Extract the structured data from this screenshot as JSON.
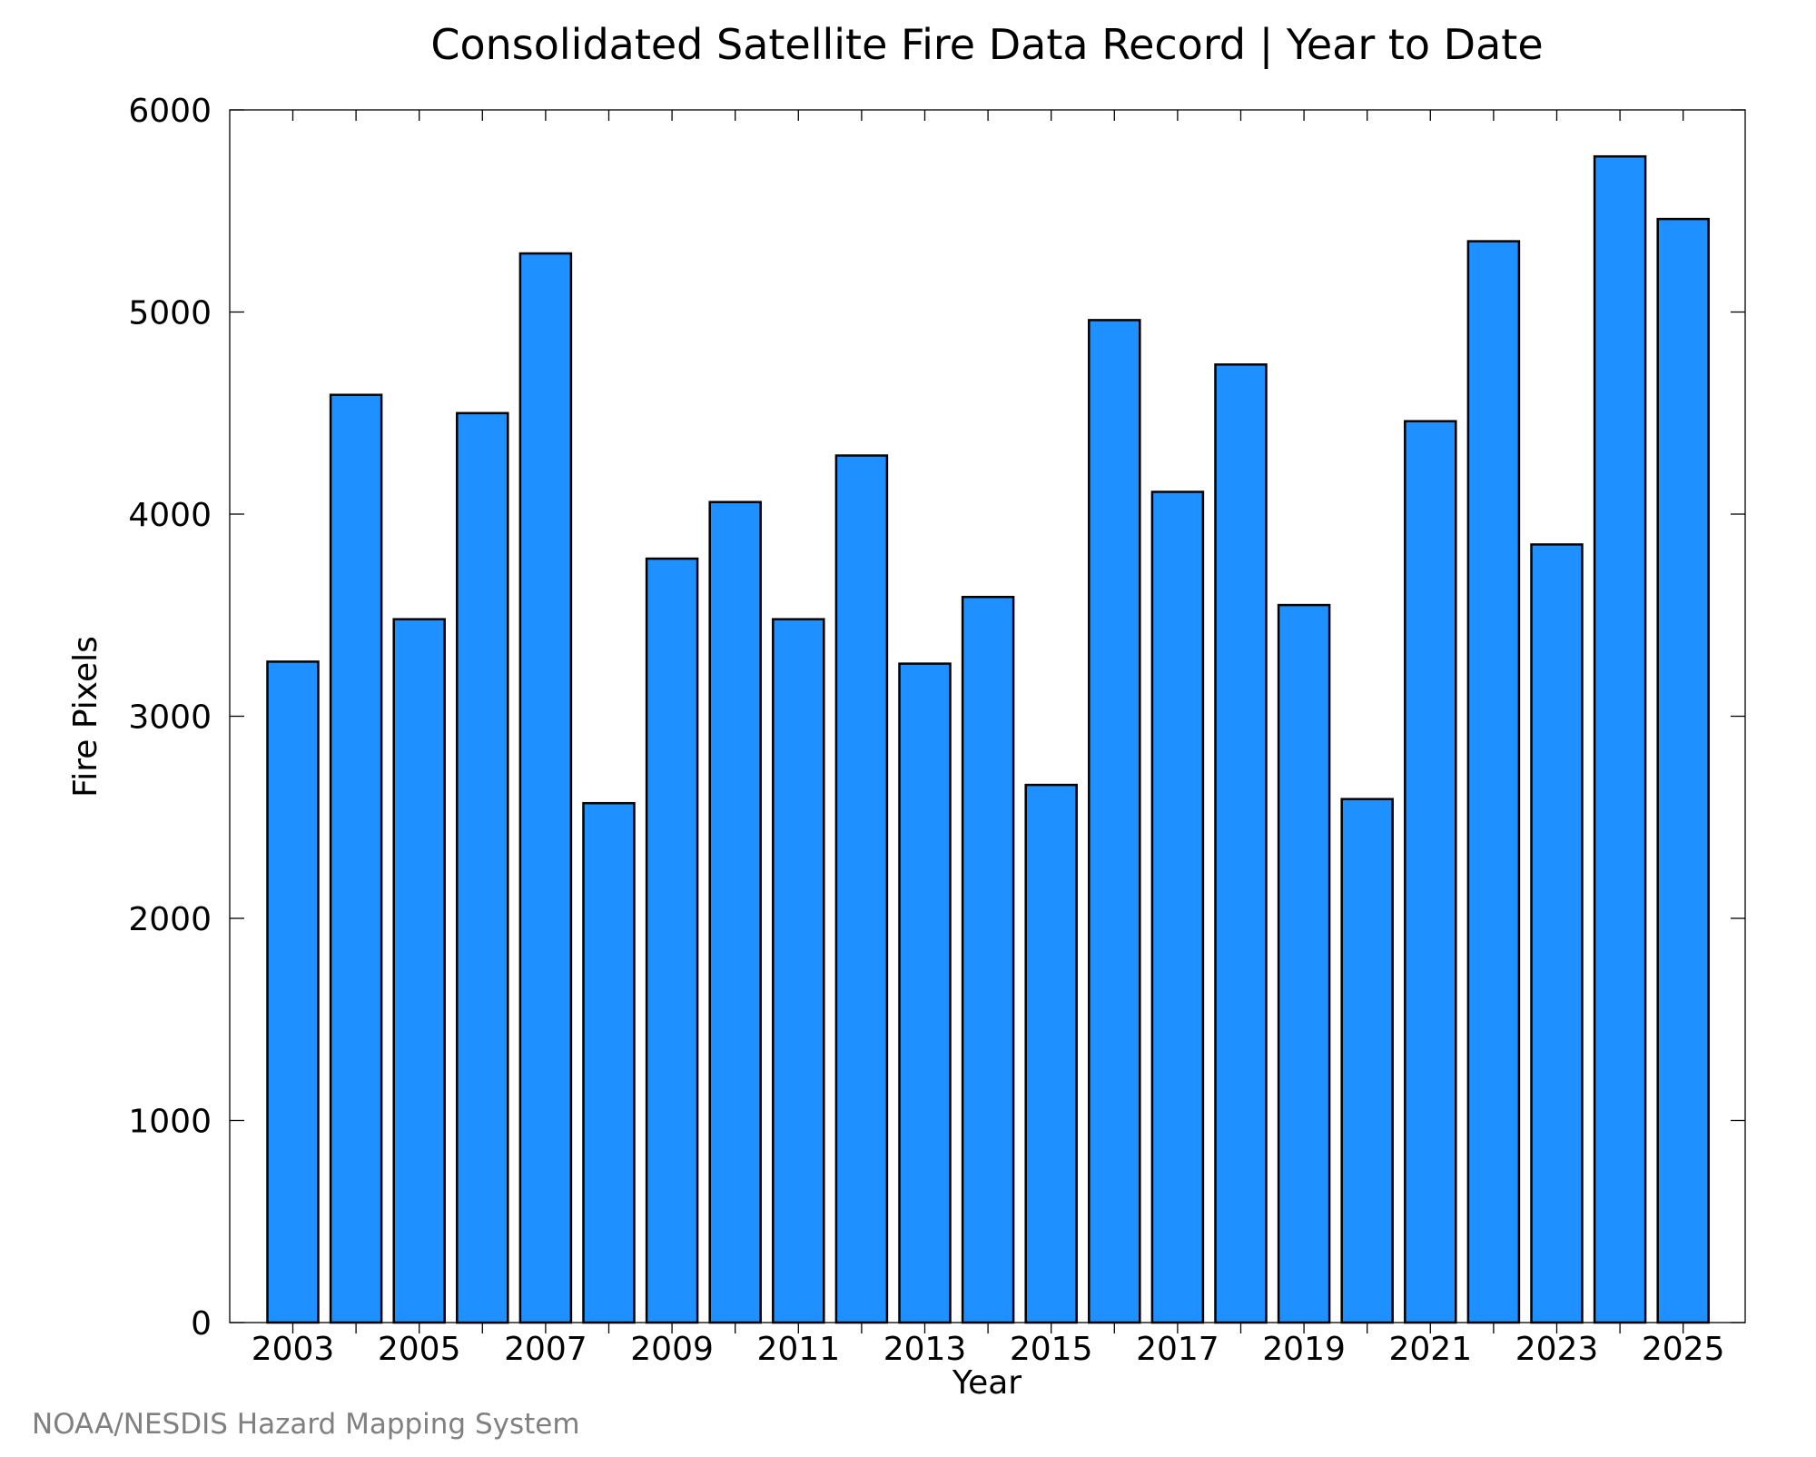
{
  "chart_data": {
    "type": "bar",
    "title": "Consolidated Satellite Fire Data Record | Year to Date",
    "xlabel": "Year",
    "ylabel": "Fire Pixels",
    "categories": [
      "2003",
      "2004",
      "2005",
      "2006",
      "2007",
      "2008",
      "2009",
      "2010",
      "2011",
      "2012",
      "2013",
      "2014",
      "2015",
      "2016",
      "2017",
      "2018",
      "2019",
      "2020",
      "2021",
      "2022",
      "2023",
      "2024",
      "2025"
    ],
    "x_tick_labels": [
      "2003",
      "2005",
      "2007",
      "2009",
      "2011",
      "2013",
      "2015",
      "2017",
      "2019",
      "2021",
      "2023",
      "2025"
    ],
    "values": [
      3270,
      4590,
      3480,
      4500,
      5290,
      2570,
      3780,
      4060,
      3480,
      4290,
      3260,
      3590,
      2660,
      4960,
      4110,
      4740,
      3550,
      2590,
      4460,
      5350,
      3850,
      5770,
      5460
    ],
    "ylim": [
      0,
      6000
    ],
    "y_ticks": [
      0,
      1000,
      2000,
      3000,
      4000,
      5000,
      6000
    ],
    "y_tick_labels": [
      "0",
      "1000",
      "2000",
      "3000",
      "4000",
      "5000",
      "6000"
    ],
    "bar_color": "#1e90ff",
    "grid": false,
    "legend": "none"
  },
  "credit": "NOAA/NESDIS Hazard Mapping System"
}
